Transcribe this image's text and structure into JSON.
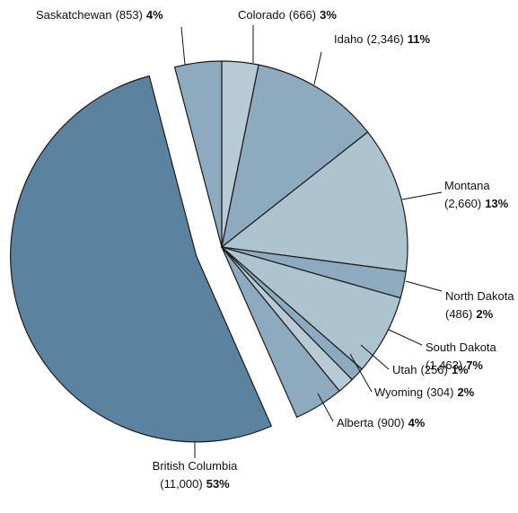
{
  "chart_data": {
    "type": "pie",
    "categories": [
      "Colorado",
      "Idaho",
      "Montana",
      "North Dakota",
      "South Dakota",
      "Utah",
      "Wyoming",
      "Alberta",
      "British Columbia",
      "Saskatchewan"
    ],
    "values": [
      666,
      2346,
      2660,
      486,
      1463,
      256,
      304,
      900,
      11000,
      853
    ],
    "value_labels": [
      "(666)",
      "(2,346)",
      "(2,660)",
      "(486)",
      "(1,463)",
      "(256)",
      "(304)",
      "(900)",
      "(11,000)",
      "(853)"
    ],
    "percents": [
      3,
      11,
      13,
      2,
      7,
      1,
      2,
      4,
      53,
      4
    ],
    "percent_labels": [
      "3%",
      "11%",
      "13%",
      "2%",
      "7%",
      "1%",
      "2%",
      "4%",
      "53%",
      "4%"
    ],
    "colors": [
      "#b7cad6",
      "#8eaabe",
      "#aec3d0",
      "#8eaabe",
      "#aec3d0",
      "#8eaabe",
      "#b7cad6",
      "#8eaabe",
      "#5b83a0",
      "#8eaabe"
    ]
  }
}
